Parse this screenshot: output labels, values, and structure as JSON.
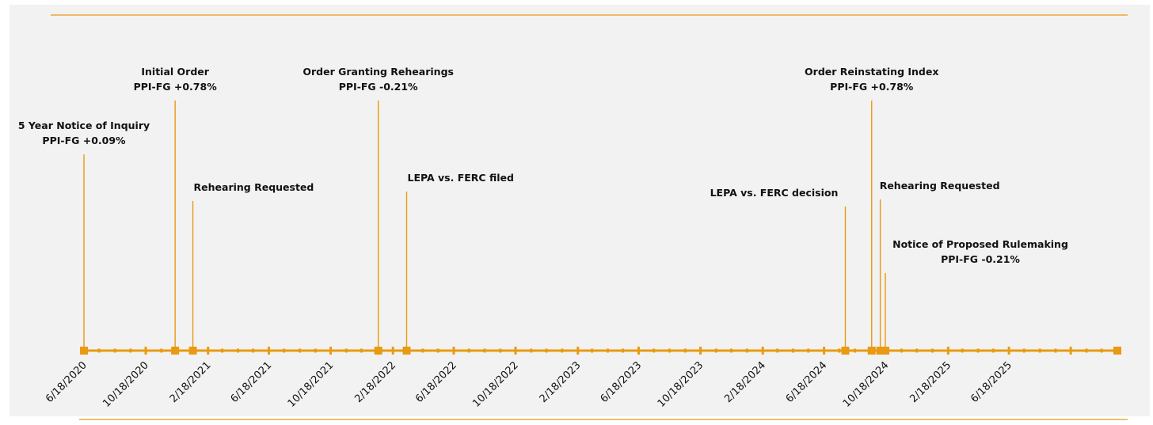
{
  "chart_data": {
    "type": "timeline",
    "title": "",
    "axis_start": "2020-06-18",
    "axis_end": "2026-01-18",
    "tick_labels": [
      "6/18/2020",
      "10/18/2020",
      "2/18/2021",
      "6/18/2021",
      "10/18/2021",
      "2/18/2022",
      "6/18/2022",
      "10/18/2022",
      "2/18/2023",
      "6/18/2023",
      "10/18/2023",
      "2/18/2024",
      "6/18/2024",
      "10/18/2024",
      "2/18/2025",
      "6/18/2025"
    ],
    "events": [
      {
        "date": "2020-06-18",
        "lines": [
          "5 Year Notice of Inquiry",
          "PPI-FG +0.09%"
        ],
        "level": "mid"
      },
      {
        "date": "2020-12-15",
        "lines": [
          "Initial Order",
          "PPI-FG +0.78%"
        ],
        "level": "high"
      },
      {
        "date": "2021-01-19",
        "lines": [
          "Rehearing Requested"
        ],
        "level": "low"
      },
      {
        "date": "2022-01-20",
        "lines": [
          "Order Granting Rehearings",
          "PPI-FG -0.21%"
        ],
        "level": "high"
      },
      {
        "date": "2022-03-17",
        "lines": [
          "LEPA vs. FERC filed"
        ],
        "level": "low"
      },
      {
        "date": "2024-07-30",
        "lines": [
          "LEPA vs. FERC decision"
        ],
        "level": "low"
      },
      {
        "date": "2024-09-20",
        "lines": [
          "Order Reinstating Index",
          "PPI-FG +0.78%"
        ],
        "level": "high"
      },
      {
        "date": "2024-10-07",
        "lines": [
          "Rehearing Requested"
        ],
        "level": "low"
      },
      {
        "date": "2024-10-17",
        "lines": [
          "Notice of Proposed Rulemaking",
          "PPI-FG -0.21%"
        ],
        "level": "lowest"
      }
    ]
  },
  "colors": {
    "accent": "#E99A12",
    "panel": "#F2F2F2",
    "text": "#111111"
  }
}
